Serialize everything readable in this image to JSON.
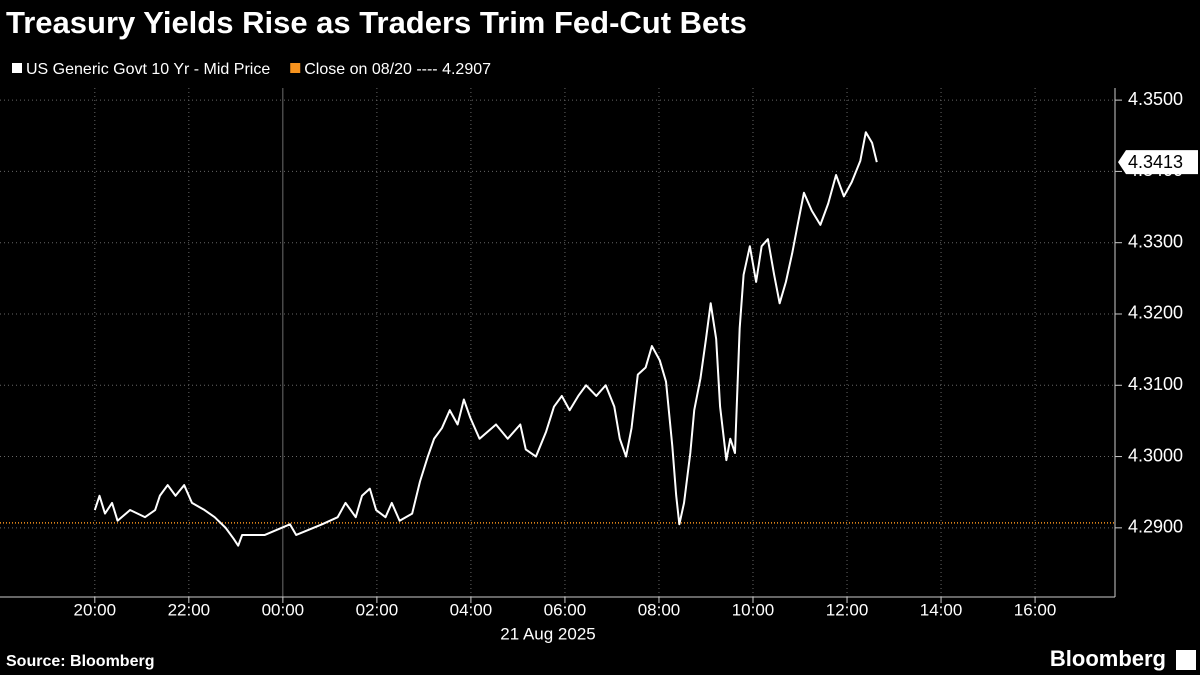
{
  "chart_data": {
    "type": "line",
    "title": "Treasury Yields Rise as Traders Trim Fed-Cut Bets",
    "x_sublabel": "21 Aug 2025",
    "source": "Source: Bloomberg",
    "brand": "Bloomberg",
    "x": [
      "20:00",
      "20:06",
      "20:13",
      "20:22",
      "20:29",
      "20:45",
      "21:04",
      "21:17",
      "21:23",
      "21:33",
      "21:43",
      "21:54",
      "22:04",
      "22:20",
      "22:33",
      "22:47",
      "22:57",
      "23:03",
      "23:08",
      "23:37",
      "00:09",
      "00:17",
      "00:50",
      "01:10",
      "01:20",
      "01:33",
      "01:41",
      "01:51",
      "01:59",
      "02:11",
      "02:19",
      "02:29",
      "02:45",
      "02:55",
      "03:05",
      "03:13",
      "03:23",
      "03:33",
      "03:43",
      "03:51",
      "03:59",
      "04:11",
      "04:32",
      "04:47",
      "05:03",
      "05:10",
      "05:23",
      "05:36",
      "05:46",
      "05:56",
      "06:06",
      "06:17",
      "06:27",
      "06:40",
      "06:52",
      "07:03",
      "07:10",
      "07:18",
      "07:25",
      "07:33",
      "07:43",
      "07:51",
      "08:01",
      "08:09",
      "08:17",
      "08:22",
      "08:26",
      "08:32",
      "08:40",
      "08:45",
      "08:53",
      "09:00",
      "09:06",
      "09:13",
      "09:18",
      "09:26",
      "09:31",
      "09:37",
      "09:43",
      "09:48",
      "09:56",
      "10:04",
      "10:11",
      "10:19",
      "10:27",
      "10:34",
      "10:42",
      "10:50",
      "10:57",
      "11:05",
      "11:15",
      "11:26",
      "11:36",
      "11:46",
      "11:56",
      "12:06",
      "12:17",
      "12:24",
      "12:32",
      "12:38"
    ],
    "series": [
      {
        "name": "US Generic Govt 10 Yr - Mid Price",
        "color": "#ffffff",
        "values": [
          4.2925,
          4.2945,
          4.292,
          4.2935,
          4.291,
          4.2925,
          4.2915,
          4.2925,
          4.2945,
          4.296,
          4.2945,
          4.296,
          4.2935,
          4.2925,
          4.2915,
          4.29,
          4.2885,
          4.2875,
          4.289,
          4.289,
          4.2905,
          4.289,
          4.2905,
          4.2915,
          4.2935,
          4.2915,
          4.2945,
          4.2955,
          4.2925,
          4.2915,
          4.2935,
          4.291,
          4.292,
          4.2965,
          4.3,
          4.3025,
          4.304,
          4.3065,
          4.3045,
          4.308,
          4.3055,
          4.3025,
          4.3045,
          4.3025,
          4.3045,
          4.301,
          4.3,
          4.3035,
          4.307,
          4.3085,
          4.3065,
          4.3085,
          4.31,
          4.3085,
          4.31,
          4.307,
          4.3025,
          4.3,
          4.304,
          4.3115,
          4.3125,
          4.3155,
          4.3135,
          4.3105,
          4.3015,
          4.2945,
          4.2905,
          4.2935,
          4.3005,
          4.3065,
          4.311,
          4.3165,
          4.3215,
          4.3165,
          4.307,
          4.2995,
          4.3025,
          4.3005,
          4.318,
          4.3255,
          4.3295,
          4.3245,
          4.3295,
          4.3305,
          4.3255,
          4.3215,
          4.3245,
          4.3285,
          4.3325,
          4.337,
          4.3345,
          4.3325,
          4.3355,
          4.3395,
          4.3365,
          4.3385,
          4.3415,
          4.3455,
          4.344,
          4.3413
        ]
      }
    ],
    "reference_line": {
      "name": "Close on 08/20 ---- 4.2907",
      "value": 4.2907,
      "color": "#f7931e"
    },
    "xlim": [
      "17:59",
      "17:42"
    ],
    "xticks": [
      "20:00",
      "22:00",
      "00:00",
      "02:00",
      "04:00",
      "06:00",
      "08:00",
      "10:00",
      "12:00",
      "14:00",
      "16:00"
    ],
    "ylim": [
      4.2803,
      4.3517
    ],
    "yticks": [
      {
        "value": 4.29,
        "label": "4.2900"
      },
      {
        "value": 4.3,
        "label": "4.3000"
      },
      {
        "value": 4.31,
        "label": "4.3100"
      },
      {
        "value": 4.32,
        "label": "4.3200"
      },
      {
        "value": 4.33,
        "label": "4.3300"
      },
      {
        "value": 4.34,
        "label": "4.3400"
      },
      {
        "value": 4.35,
        "label": "4.3500"
      }
    ],
    "grid": true
  }
}
